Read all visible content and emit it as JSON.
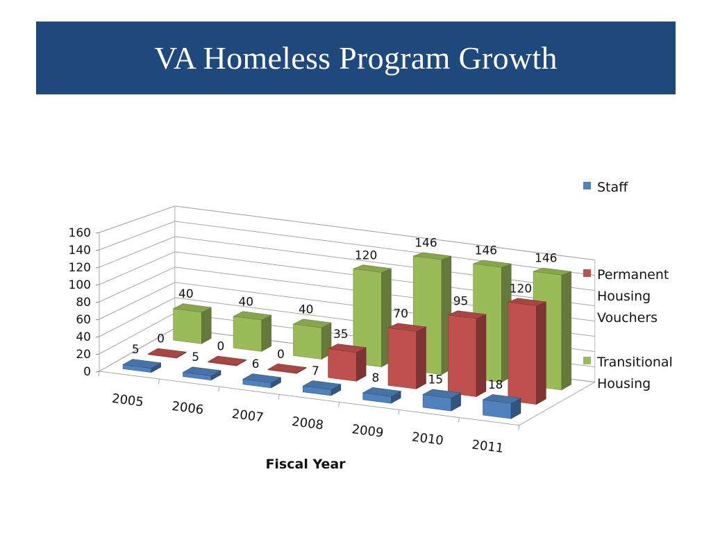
{
  "slide": {
    "title": "VA Homeless Program Growth"
  },
  "chart_data": {
    "type": "bar",
    "title": "",
    "xlabel": "Fiscal Year",
    "ylabel": "",
    "ylim": [
      0,
      160
    ],
    "yticks": [
      "0",
      "20",
      "40",
      "60",
      "80",
      "100",
      "120",
      "140",
      "160"
    ],
    "categories": [
      "2005",
      "2006",
      "2007",
      "2008",
      "2009",
      "2010",
      "2011"
    ],
    "legend_position": "right",
    "grid": true,
    "series": [
      {
        "name": "Staff",
        "values": [
          5,
          5,
          6,
          7,
          8,
          15,
          18
        ],
        "color": "#4f81bd"
      },
      {
        "name": "Permanent Housing Vouchers",
        "values": [
          0,
          0,
          0,
          35,
          70,
          95,
          120
        ],
        "color": "#c0504d"
      },
      {
        "name": "Transitional Housing",
        "values": [
          40,
          40,
          40,
          120,
          146,
          146,
          146
        ],
        "color": "#9bbb59"
      }
    ],
    "data_labels": [
      [
        "5",
        "5",
        "6",
        "7",
        "8",
        "15",
        "18"
      ],
      [
        "0",
        "0",
        "0",
        "35",
        "70",
        "95",
        "120"
      ],
      [
        "40",
        "40",
        "40",
        "120",
        "146",
        "146",
        "146"
      ]
    ],
    "legend": [
      {
        "lines": [
          "Staff"
        ]
      },
      {
        "lines": [
          "Permanent",
          "Housing",
          "Vouchers"
        ]
      },
      {
        "lines": [
          "Transitional",
          "Housing"
        ]
      }
    ]
  }
}
